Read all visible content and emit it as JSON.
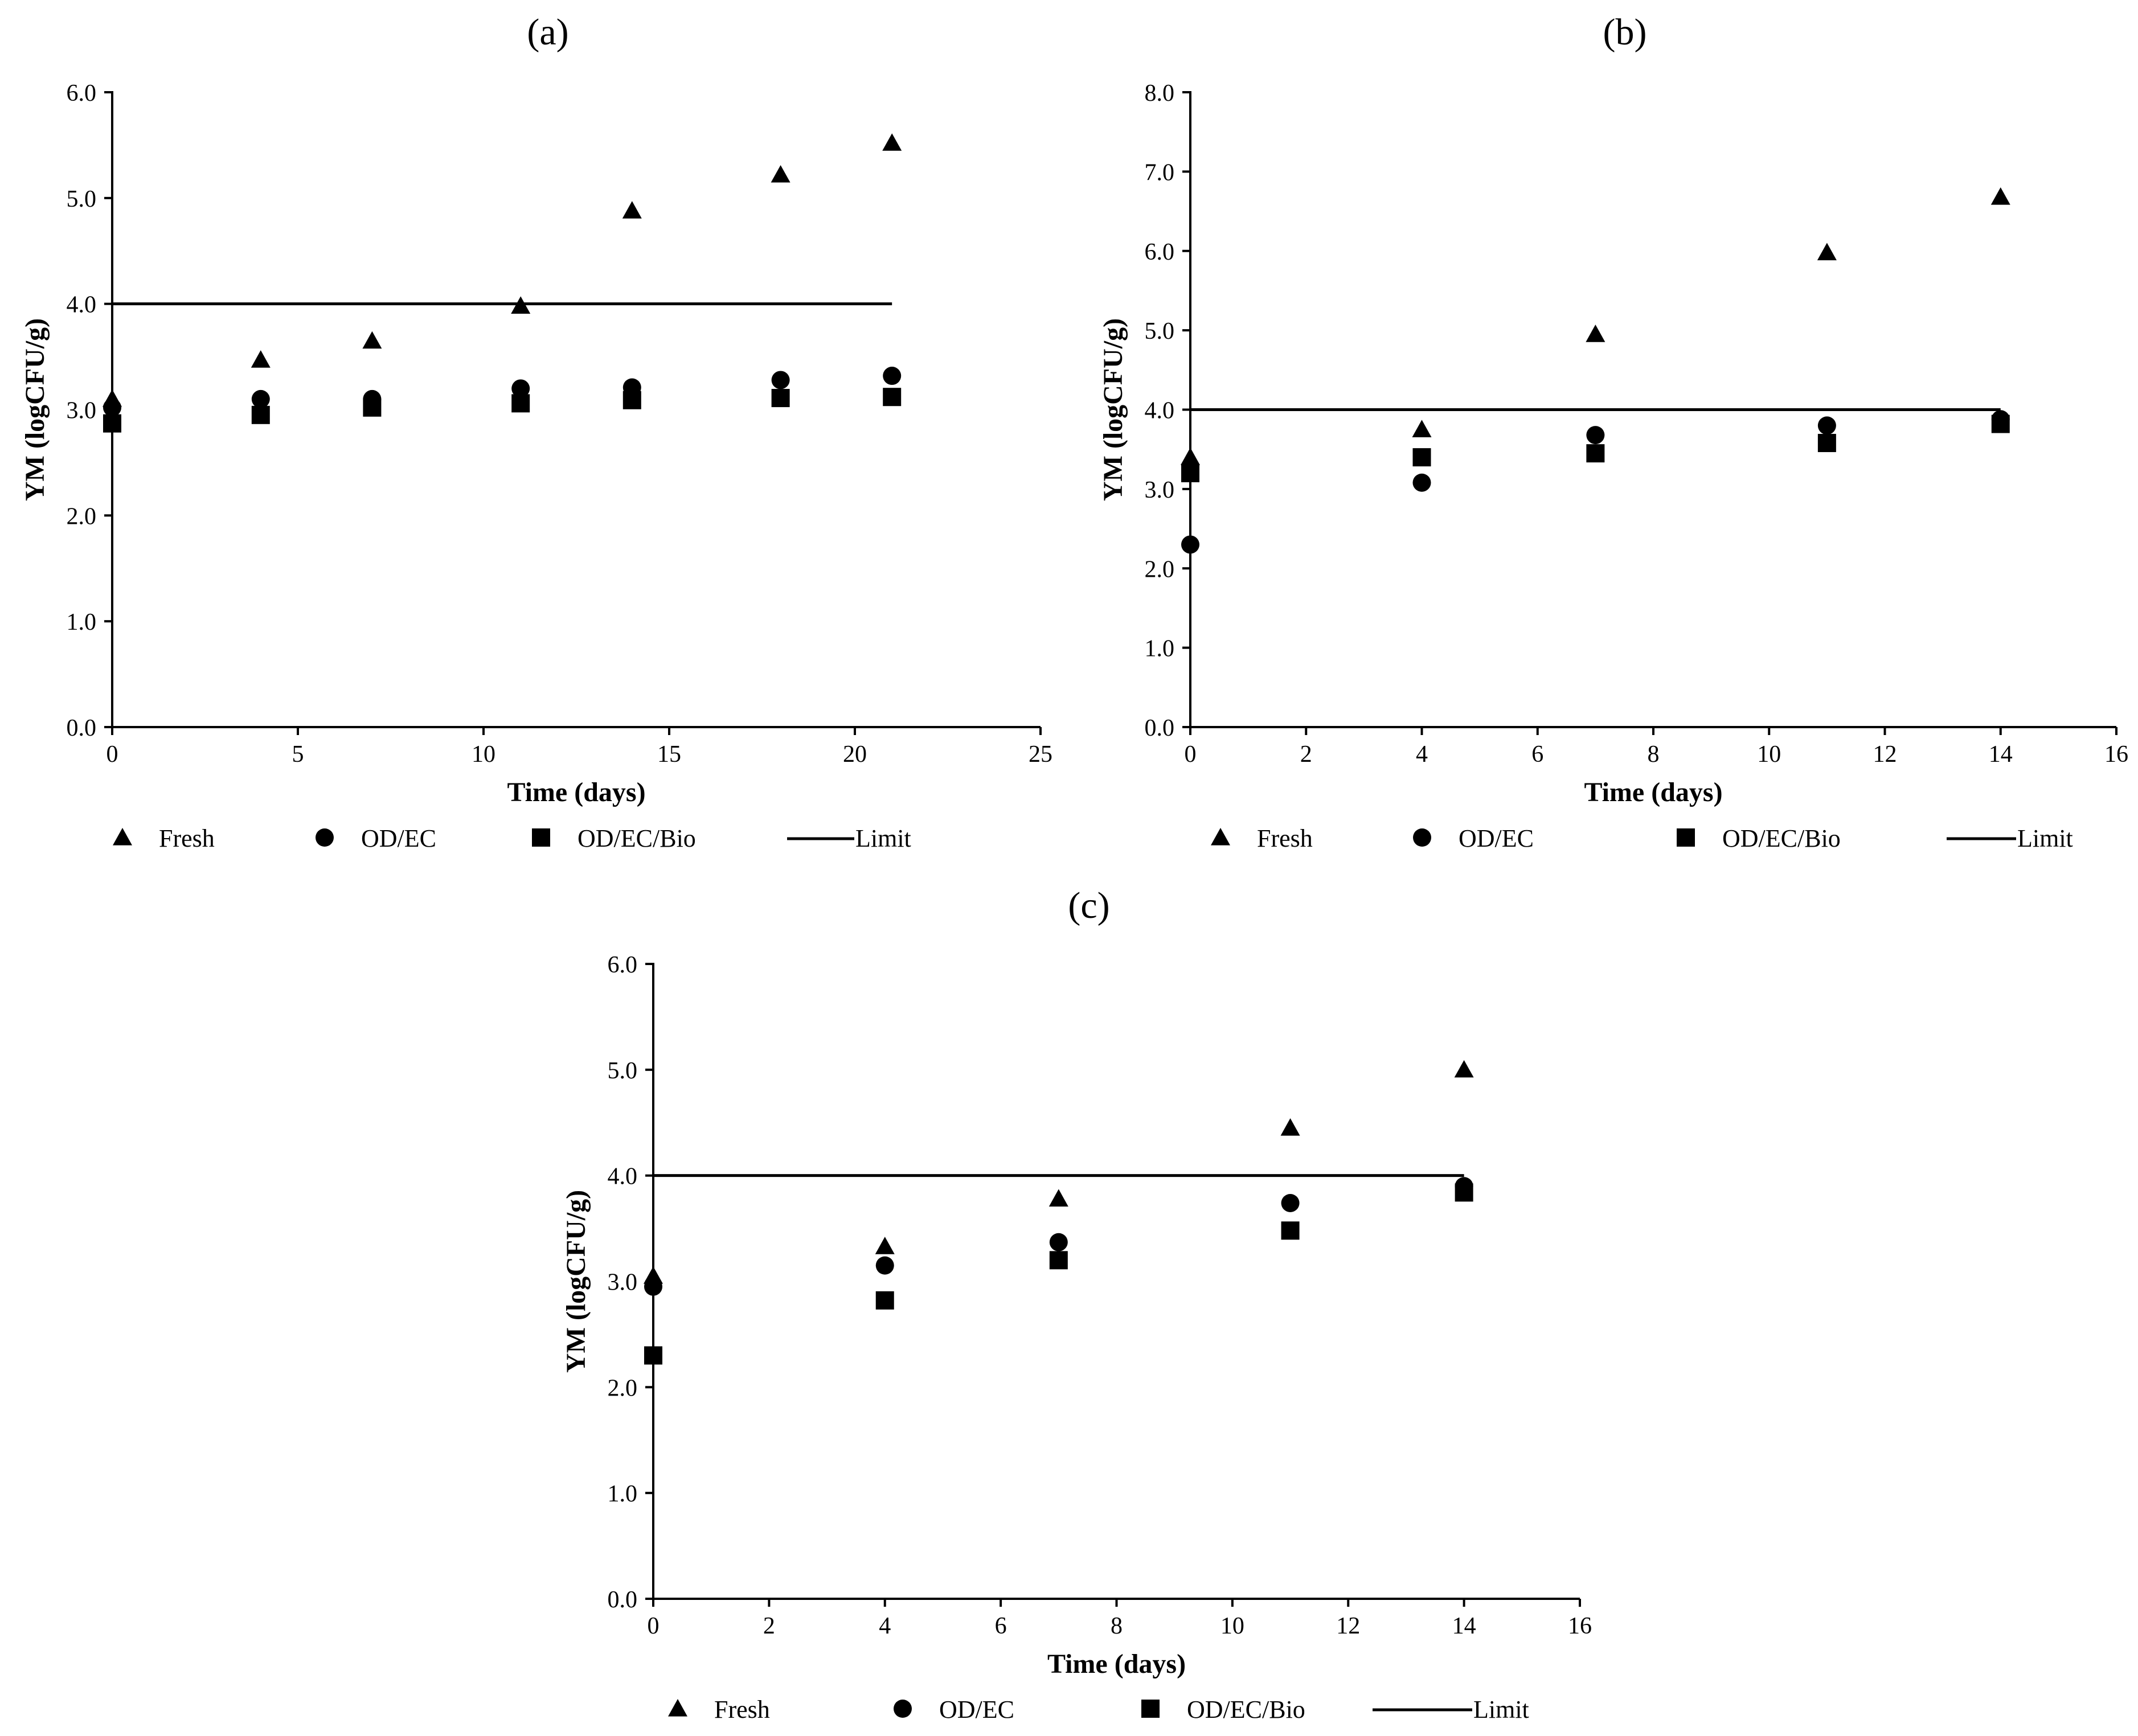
{
  "chart_data": [
    {
      "id": "a",
      "type": "scatter",
      "panel_label": "(a)",
      "xlabel": "Time (days)",
      "ylabel": "YM (logCFU/g)",
      "xlim": [
        0,
        25
      ],
      "ylim": [
        0,
        6
      ],
      "xticks": [
        0,
        5,
        10,
        15,
        20,
        25
      ],
      "xtick_labels": [
        "0",
        "5",
        "10",
        "15",
        "20",
        "25"
      ],
      "yticks": [
        0,
        1,
        2,
        3,
        4,
        5,
        6
      ],
      "ytick_labels": [
        "0.0",
        "1.0",
        "2.0",
        "3.0",
        "4.0",
        "5.0",
        "6.0"
      ],
      "series": [
        {
          "name": "Fresh",
          "marker": "triangle",
          "x": [
            0,
            4,
            7,
            11,
            14,
            18,
            21
          ],
          "values": [
            3.1,
            3.47,
            3.65,
            3.98,
            4.88,
            5.22,
            5.52
          ]
        },
        {
          "name": "OD/EC",
          "marker": "circle",
          "x": [
            0,
            4,
            7,
            11,
            14,
            18,
            21
          ],
          "values": [
            3.02,
            3.1,
            3.1,
            3.2,
            3.21,
            3.28,
            3.32
          ]
        },
        {
          "name": "OD/EC/Bio",
          "marker": "square",
          "x": [
            0,
            4,
            7,
            11,
            14,
            18,
            21
          ],
          "values": [
            2.87,
            2.95,
            3.02,
            3.06,
            3.09,
            3.11,
            3.12
          ]
        }
      ],
      "limit": {
        "name": "Limit",
        "value": 4.0,
        "x_start": 0,
        "x_end": 21
      },
      "legend": [
        "Fresh",
        "OD/EC",
        "OD/EC/Bio",
        "Limit"
      ]
    },
    {
      "id": "b",
      "type": "scatter",
      "panel_label": "(b)",
      "xlabel": "Time (days)",
      "ylabel": "YM (logCFU/g)",
      "xlim": [
        0,
        16
      ],
      "ylim": [
        0,
        8
      ],
      "xticks": [
        0,
        2,
        4,
        6,
        8,
        10,
        12,
        14,
        16
      ],
      "xtick_labels": [
        "0",
        "2",
        "4",
        "6",
        "8",
        "10",
        "12",
        "14",
        "16"
      ],
      "yticks": [
        0,
        1,
        2,
        3,
        4,
        5,
        6,
        7,
        8
      ],
      "ytick_labels": [
        "0.0",
        "1.0",
        "2.0",
        "3.0",
        "4.0",
        "5.0",
        "6.0",
        "7.0",
        "8.0"
      ],
      "series": [
        {
          "name": "Fresh",
          "marker": "triangle",
          "x": [
            0,
            4,
            7,
            11,
            14
          ],
          "values": [
            3.4,
            3.75,
            4.95,
            5.98,
            6.68
          ]
        },
        {
          "name": "OD/EC",
          "marker": "circle",
          "x": [
            0,
            4,
            7,
            11,
            14
          ],
          "values": [
            2.3,
            3.08,
            3.68,
            3.8,
            3.88
          ]
        },
        {
          "name": "OD/EC/Bio",
          "marker": "square",
          "x": [
            0,
            4,
            7,
            11,
            14
          ],
          "values": [
            3.2,
            3.4,
            3.45,
            3.58,
            3.82
          ]
        }
      ],
      "limit": {
        "name": "Limit",
        "value": 4.0,
        "x_start": 0,
        "x_end": 14
      },
      "legend": [
        "Fresh",
        "OD/EC",
        "OD/EC/Bio",
        "Limit"
      ]
    },
    {
      "id": "c",
      "type": "scatter",
      "panel_label": "(c)",
      "xlabel": "Time (days)",
      "ylabel": "YM (logCFU/g)",
      "xlim": [
        0,
        16
      ],
      "ylim": [
        0,
        6
      ],
      "xticks": [
        0,
        2,
        4,
        6,
        8,
        10,
        12,
        14,
        16
      ],
      "xtick_labels": [
        "0",
        "2",
        "4",
        "6",
        "8",
        "10",
        "12",
        "14",
        "16"
      ],
      "yticks": [
        0,
        1,
        2,
        3,
        4,
        5,
        6
      ],
      "ytick_labels": [
        "0.0",
        "1.0",
        "2.0",
        "3.0",
        "4.0",
        "5.0",
        "6.0"
      ],
      "series": [
        {
          "name": "Fresh",
          "marker": "triangle",
          "x": [
            0,
            4,
            7,
            11,
            14
          ],
          "values": [
            3.05,
            3.33,
            3.78,
            4.45,
            5.0
          ]
        },
        {
          "name": "OD/EC",
          "marker": "circle",
          "x": [
            0,
            4,
            7,
            11,
            14
          ],
          "values": [
            2.95,
            3.15,
            3.37,
            3.74,
            3.9
          ]
        },
        {
          "name": "OD/EC/Bio",
          "marker": "square",
          "x": [
            0,
            4,
            7,
            11,
            14
          ],
          "values": [
            2.3,
            2.82,
            3.2,
            3.48,
            3.84
          ]
        }
      ],
      "limit": {
        "name": "Limit",
        "value": 4.0,
        "x_start": 0,
        "x_end": 14
      },
      "legend": [
        "Fresh",
        "OD/EC",
        "OD/EC/Bio",
        "Limit"
      ]
    }
  ]
}
